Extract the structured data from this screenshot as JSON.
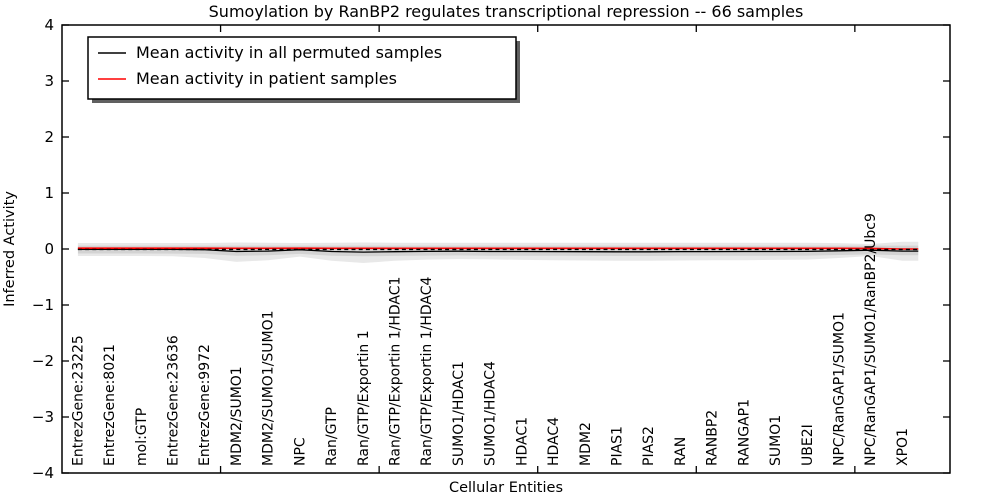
{
  "chart_data": {
    "type": "line",
    "title": "Sumoylation by RanBP2 regulates transcriptional repression -- 66 samples",
    "xlabel": "Cellular Entities",
    "ylabel": "Inferred Activity",
    "xlim": [
      0,
      28
    ],
    "ylim": [
      -4,
      4
    ],
    "grid": false,
    "legend_position": "upper left",
    "ytick_values": [
      4,
      3,
      2,
      1,
      0,
      -1,
      -2,
      -3,
      -4
    ],
    "ytick_labels": [
      "4",
      "3",
      "2",
      "1",
      "0",
      "−1",
      "−2",
      "−3",
      "−4"
    ],
    "xtick_values": [
      5,
      10,
      15,
      20,
      25
    ],
    "categories": [
      "EntrezGene:23225",
      "EntrezGene:8021",
      "mol:GTP",
      "EntrezGene:23636",
      "EntrezGene:9972",
      "MDM2/SUMO1",
      "MDM2/SUMO1/SUMO1",
      "NPC",
      "Ran/GTP",
      "Ran/GTP/Exportin 1",
      "Ran/GTP/Exportin 1/HDAC1",
      "Ran/GTP/Exportin 1/HDAC4",
      "SUMO1/HDAC1",
      "SUMO1/HDAC4",
      "HDAC1",
      "HDAC4",
      "MDM2",
      "PIAS1",
      "PIAS2",
      "RAN",
      "RANBP2",
      "RANGAP1",
      "SUMO1",
      "UBE2I",
      "NPC/RanGAP1/SUMO1",
      "NPC/RanGAP1/SUMO1/RanBP2/Ubc9",
      "XPO1"
    ],
    "series": [
      {
        "name": "Mean activity in all permuted samples",
        "color": "#000000",
        "style": "solid",
        "values": [
          -0.005,
          -0.005,
          -0.005,
          -0.008,
          -0.012,
          -0.045,
          -0.038,
          -0.012,
          -0.045,
          -0.055,
          -0.048,
          -0.042,
          -0.04,
          -0.045,
          -0.045,
          -0.046,
          -0.048,
          -0.05,
          -0.05,
          -0.047,
          -0.046,
          -0.045,
          -0.044,
          -0.042,
          -0.033,
          -0.022,
          -0.038
        ]
      },
      {
        "name": "Mean activity in patient samples",
        "color": "#ff0000",
        "style": "solid",
        "values": [
          0.015,
          0.015,
          0.015,
          0.015,
          0.015,
          0.013,
          0.013,
          0.015,
          0.013,
          0.012,
          0.012,
          0.013,
          0.013,
          0.013,
          0.013,
          0.013,
          0.013,
          0.013,
          0.013,
          0.013,
          0.013,
          0.013,
          0.013,
          0.013,
          0.013,
          0.01,
          0.0
        ]
      },
      {
        "name": "zero-reference",
        "color": "#000000",
        "style": "dashed",
        "values": [
          -0.008,
          -0.008,
          -0.008,
          -0.008,
          -0.008,
          -0.008,
          -0.008,
          -0.008,
          -0.008,
          -0.008,
          -0.008,
          -0.008,
          -0.008,
          -0.008,
          -0.008,
          -0.008,
          -0.008,
          -0.008,
          -0.008,
          -0.008,
          -0.008,
          -0.008,
          -0.008,
          -0.008,
          -0.008,
          -0.008,
          -0.008
        ]
      }
    ],
    "band_outer": {
      "fill": "rgba(0,0,0,0.09)",
      "upper": [
        0.107,
        0.107,
        0.107,
        0.107,
        0.107,
        0.116,
        0.11,
        0.107,
        0.112,
        0.116,
        0.112,
        0.11,
        0.11,
        0.11,
        0.11,
        0.11,
        0.11,
        0.11,
        0.11,
        0.11,
        0.11,
        0.11,
        0.11,
        0.11,
        0.105,
        0.09,
        0.13
      ],
      "lower": [
        -0.125,
        -0.125,
        -0.125,
        -0.13,
        -0.16,
        -0.23,
        -0.2,
        -0.135,
        -0.21,
        -0.25,
        -0.21,
        -0.19,
        -0.18,
        -0.185,
        -0.195,
        -0.2,
        -0.205,
        -0.21,
        -0.21,
        -0.205,
        -0.2,
        -0.2,
        -0.195,
        -0.19,
        -0.16,
        -0.125,
        -0.21
      ]
    },
    "band_inner": {
      "fill": "rgba(0,0,0,0.09)",
      "upper": [
        0.06,
        0.06,
        0.06,
        0.06,
        0.06,
        0.06,
        0.06,
        0.06,
        0.06,
        0.06,
        0.06,
        0.06,
        0.06,
        0.06,
        0.06,
        0.06,
        0.06,
        0.06,
        0.06,
        0.06,
        0.06,
        0.06,
        0.06,
        0.06,
        0.06,
        0.06,
        0.06
      ],
      "lower": [
        -0.08,
        -0.08,
        -0.08,
        -0.083,
        -0.087,
        -0.12,
        -0.113,
        -0.087,
        -0.12,
        -0.13,
        -0.123,
        -0.117,
        -0.115,
        -0.12,
        -0.12,
        -0.121,
        -0.123,
        -0.125,
        -0.125,
        -0.122,
        -0.121,
        -0.12,
        -0.119,
        -0.117,
        -0.108,
        -0.097,
        -0.113
      ]
    },
    "axis_color": "#000000",
    "background_color": "#ffffff"
  }
}
